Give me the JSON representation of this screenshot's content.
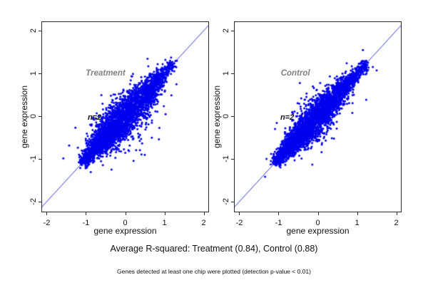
{
  "caption": "Average R-squared: Treatment (0.84), Control (0.88)",
  "footnote": "Genes detected at least one chip were plotted (detection p-value < 0.01)",
  "colors": {
    "points": "#0000EE",
    "identity_line": "#3434DC",
    "frame": "#2a2a2a",
    "panel_label": "#808080",
    "text": "#111111",
    "background": "#ffffff"
  },
  "chart_data": [
    {
      "type": "scatter",
      "panel_label": "Treatment",
      "panel_label_pos": [
        -0.5,
        1.0
      ],
      "annotation": "n=2",
      "annotation_pos": [
        -0.78,
        -0.04
      ],
      "xlabel": "gene expression",
      "ylabel": "gene expression",
      "xticks": [
        -2,
        -1,
        0,
        1,
        2
      ],
      "yticks": [
        -2,
        -1,
        0,
        1,
        2
      ],
      "xlim": [
        -2.136,
        2.136
      ],
      "ylim": [
        -2.25,
        2.217
      ],
      "identity_line": true,
      "r_squared": 0.84,
      "cloud": {
        "n": 3400,
        "seed": 13,
        "spread": 1.0,
        "range": [
          -1.05,
          1.22
        ],
        "note": "dense blue cloud of gene-expression replicate values along the diagonal from about (-1,-1) to (1.2,1.2), widest near the middle, with scattered outliers"
      }
    },
    {
      "type": "scatter",
      "panel_label": "Control",
      "panel_label_pos": [
        -0.57,
        1.0
      ],
      "annotation": "n=2",
      "annotation_pos": [
        -0.78,
        -0.04
      ],
      "xlabel": "gene expression",
      "ylabel": "gene expression",
      "xticks": [
        -2,
        -1,
        0,
        1,
        2
      ],
      "yticks": [
        -2,
        -1,
        0,
        1,
        2
      ],
      "xlim": [
        -2.136,
        2.136
      ],
      "ylim": [
        -2.25,
        2.217
      ],
      "identity_line": true,
      "r_squared": 0.88,
      "cloud": {
        "n": 3400,
        "seed": 99,
        "spread": 0.88,
        "range": [
          -1.05,
          1.22
        ],
        "note": "slightly tighter cloud than Treatment (higher R-squared), same diagonal extent with a few outliers below the line"
      }
    }
  ]
}
